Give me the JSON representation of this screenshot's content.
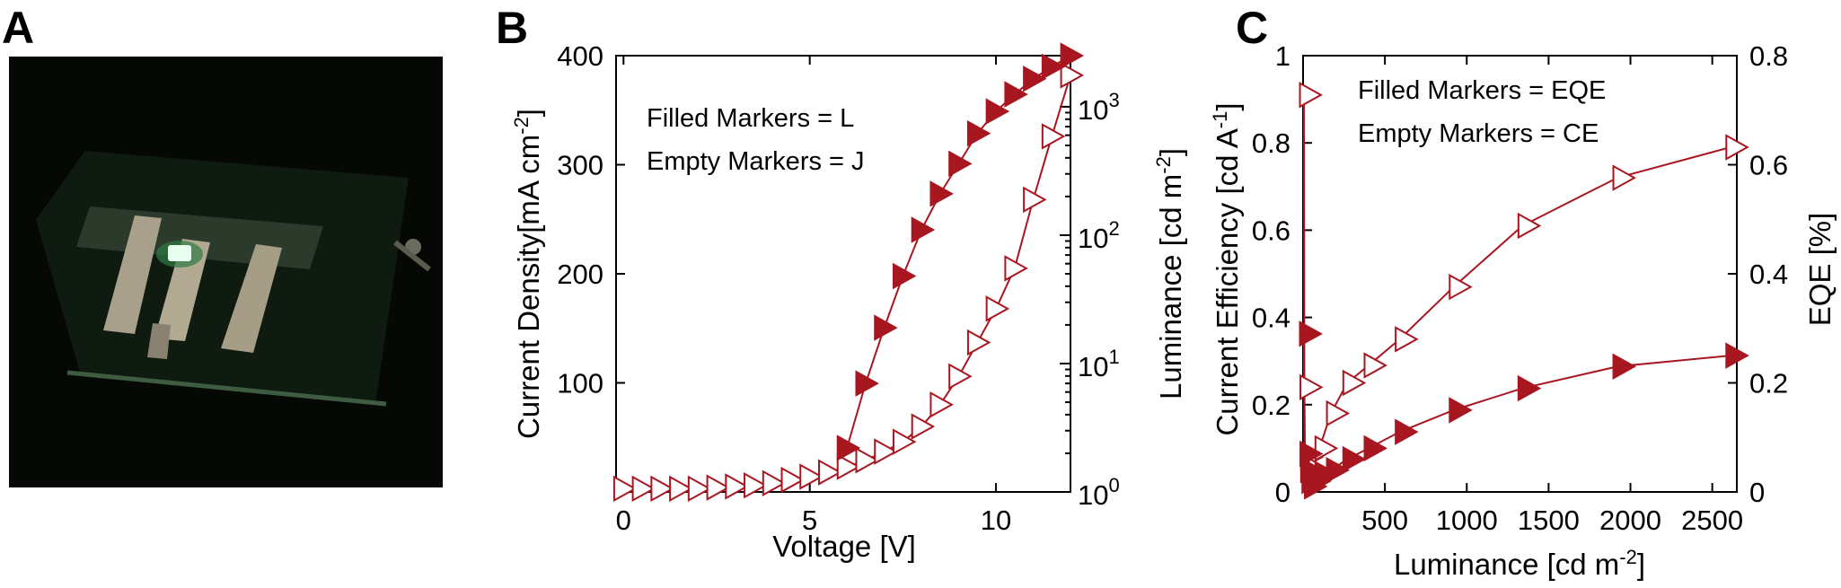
{
  "colors": {
    "series": "#a81620",
    "background": "#ffffff",
    "photo_bg": "#050805",
    "glow": "#5cff9a"
  },
  "panel_a": {
    "letter": "A",
    "photo_icon": "oled-device-photo"
  },
  "panel_b": {
    "letter": "B",
    "note_line1": "Filled Markers = L",
    "note_line2": "Empty Markers = J",
    "xlabel": "Voltage [V]",
    "ylabel_left": "Current Density[mA cm",
    "ylabel_left_sup": "-2",
    "ylabel_left_end": "]",
    "ylabel_right": "Luminance [cd m",
    "ylabel_right_sup": "-2",
    "ylabel_right_end": "]",
    "x_ticks": [
      "0",
      "5",
      "10"
    ],
    "y_left_ticks": [
      "100",
      "200",
      "300",
      "400"
    ],
    "y_right_tick_base": "10",
    "y_right_exponents": [
      "0",
      "1",
      "2",
      "3"
    ]
  },
  "panel_c": {
    "letter": "C",
    "note_line1": "Filled Markers = EQE",
    "note_line2": "Empty Markers = CE",
    "xlabel": "Luminance [cd m",
    "xlabel_sup": "-2",
    "xlabel_end": "]",
    "ylabel_left": "Current Efficiency [cd A",
    "ylabel_left_sup": "-1",
    "ylabel_left_end": "]",
    "ylabel_right": "EQE [%]",
    "x_ticks": [
      "500",
      "1000",
      "1500",
      "2000",
      "2500"
    ],
    "y_left_ticks": [
      "0",
      "0.2",
      "0.4",
      "0.6",
      "0.8",
      "1"
    ],
    "y_right_ticks": [
      "0",
      "0.2",
      "0.4",
      "0.6",
      "0.8"
    ]
  },
  "chart_data": [
    {
      "panel": "B",
      "type": "line",
      "xlabel": "Voltage [V]",
      "ylabel": "Current Density[mA cm-2]",
      "y2label": "Luminance [cd m-2]",
      "xlim": [
        -0.2,
        12
      ],
      "ylim": [
        0,
        400
      ],
      "y2lim": [
        1,
        2500
      ],
      "y2scale": "log",
      "series": [
        {
          "marker": "empty-triangle-right",
          "axis": "left",
          "x": [
            0,
            0.5,
            1,
            1.5,
            2,
            2.5,
            3,
            3.5,
            4,
            4.5,
            5,
            5.5,
            6,
            6.5,
            7,
            7.5,
            8,
            8.5,
            9,
            9.5,
            10,
            10.5,
            11,
            11.5,
            12
          ],
          "y": [
            3,
            3,
            3,
            3,
            3,
            4,
            5,
            6,
            8,
            11,
            14,
            18,
            23,
            29,
            37,
            46,
            60,
            80,
            106,
            137,
            168,
            205,
            268,
            326,
            382
          ]
        },
        {
          "marker": "filled-triangle-right",
          "axis": "right",
          "x": [
            6,
            6.5,
            7,
            7.5,
            8,
            8.5,
            9,
            9.5,
            10,
            10.5,
            11,
            11.5,
            12
          ],
          "y": [
            2.2,
            7,
            19,
            48,
            110,
            210,
            360,
            620,
            920,
            1250,
            1650,
            2050,
            2500
          ]
        }
      ]
    },
    {
      "panel": "C",
      "type": "line",
      "xlabel": "Luminance [cd m-2]",
      "ylabel": "Current Efficiency [cd A-1]",
      "y2label": "EQE [%]",
      "xlim": [
        0,
        2650
      ],
      "ylim": [
        0,
        1
      ],
      "y2lim": [
        0,
        0.8
      ],
      "series": [
        {
          "marker": "empty-triangle-right",
          "axis": "left",
          "x": [
            5,
            8,
            12,
            20,
            35,
            60,
            100,
            170,
            270,
            400,
            590,
            920,
            1340,
            1920,
            2610
          ],
          "y": [
            0.91,
            0.24,
            0.08,
            0.05,
            0.04,
            0.05,
            0.1,
            0.18,
            0.25,
            0.29,
            0.35,
            0.47,
            0.61,
            0.72,
            0.79
          ]
        },
        {
          "marker": "filled-triangle-right",
          "axis": "right",
          "x": [
            5,
            8,
            12,
            20,
            35,
            60,
            100,
            170,
            270,
            400,
            590,
            920,
            1340,
            1920,
            2610
          ],
          "y": [
            0.29,
            0.07,
            0.04,
            0.02,
            0.01,
            0.02,
            0.03,
            0.04,
            0.06,
            0.08,
            0.11,
            0.15,
            0.19,
            0.23,
            0.25
          ]
        }
      ]
    }
  ]
}
